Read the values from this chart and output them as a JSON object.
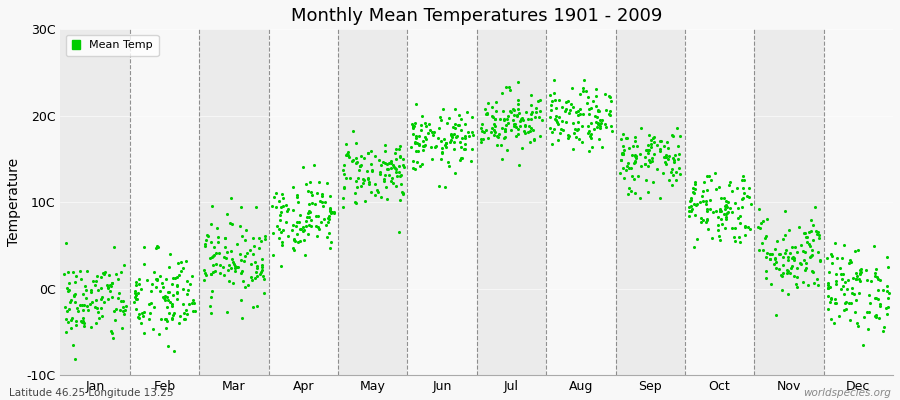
{
  "title": "Monthly Mean Temperatures 1901 - 2009",
  "ylabel": "Temperature",
  "subtitle_left": "Latitude 46.25 Longitude 13.25",
  "subtitle_right": "worldspecies.org",
  "legend_label": "Mean Temp",
  "dot_color": "#00cc00",
  "ylim": [
    -10,
    30
  ],
  "yticks": [
    -10,
    0,
    10,
    20,
    30
  ],
  "ytick_labels": [
    "-10C",
    "0C",
    "10C",
    "20C",
    "30C"
  ],
  "months": [
    "Jan",
    "Feb",
    "Mar",
    "Apr",
    "May",
    "Jun",
    "Jul",
    "Aug",
    "Sep",
    "Oct",
    "Nov",
    "Dec"
  ],
  "monthly_means": [
    -1.5,
    -1.2,
    3.5,
    8.5,
    13.5,
    17.0,
    19.5,
    19.5,
    15.0,
    9.5,
    4.0,
    0.0
  ],
  "monthly_stds": [
    2.5,
    2.8,
    2.5,
    2.2,
    2.0,
    1.8,
    1.8,
    1.8,
    2.0,
    2.2,
    2.5,
    2.5
  ],
  "n_years": 109,
  "band_colors": [
    "#ebebeb",
    "#f8f8f8"
  ],
  "background_color": "#f8f8f8",
  "grid_color": "#666666",
  "dot_size": 5,
  "font_family": "DejaVu Sans"
}
